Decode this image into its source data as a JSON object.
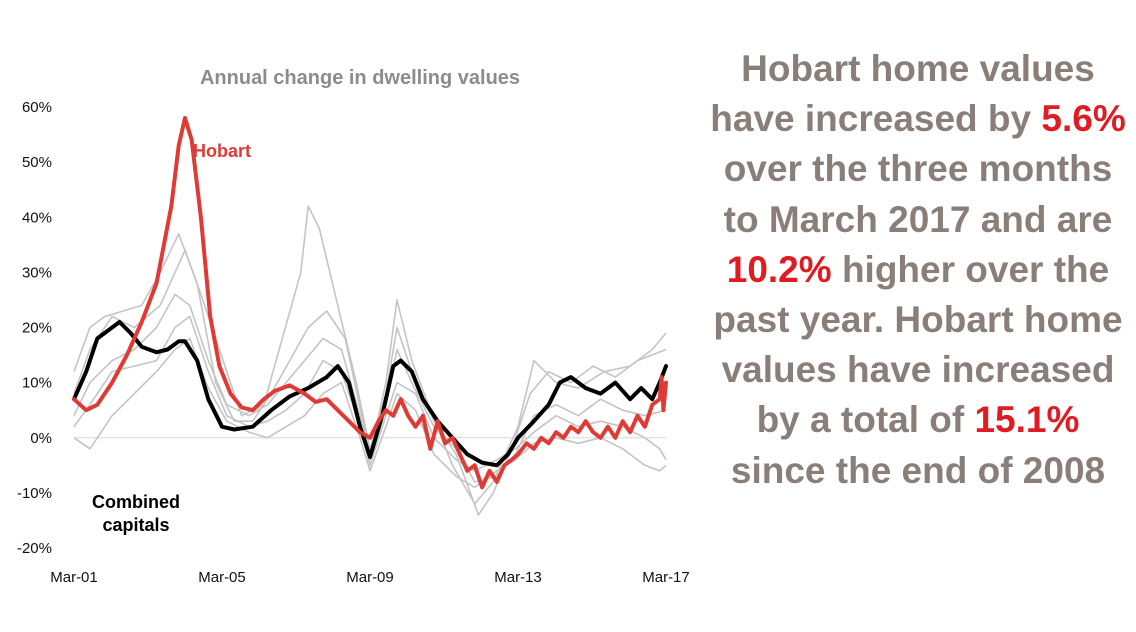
{
  "chart_data": {
    "type": "line",
    "title": "Annual change in dwelling values",
    "x_ticks": [
      "Mar-01",
      "Mar-05",
      "Mar-09",
      "Mar-13",
      "Mar-17"
    ],
    "y_ticks": [
      "60%",
      "50%",
      "40%",
      "30%",
      "20%",
      "10%",
      "0%",
      "-10%",
      "-20%"
    ],
    "ylim": [
      -20,
      60
    ],
    "xlim": [
      2001.17,
      2017.17
    ],
    "legend": "inline labels",
    "series": [
      {
        "name": "Hobart",
        "color": "#e03a34",
        "points": [
          [
            2001.17,
            7
          ],
          [
            2001.5,
            5
          ],
          [
            2001.8,
            6
          ],
          [
            2002.2,
            10
          ],
          [
            2002.6,
            15
          ],
          [
            2003.0,
            21
          ],
          [
            2003.4,
            28
          ],
          [
            2003.8,
            42
          ],
          [
            2004.0,
            53
          ],
          [
            2004.17,
            58
          ],
          [
            2004.35,
            54
          ],
          [
            2004.6,
            40
          ],
          [
            2004.85,
            22
          ],
          [
            2005.1,
            13
          ],
          [
            2005.4,
            8
          ],
          [
            2005.7,
            5.5
          ],
          [
            2006.0,
            5
          ],
          [
            2006.3,
            7
          ],
          [
            2006.6,
            8.5
          ],
          [
            2007.0,
            9.5
          ],
          [
            2007.4,
            8
          ],
          [
            2007.7,
            6.5
          ],
          [
            2008.0,
            7
          ],
          [
            2008.3,
            5
          ],
          [
            2008.6,
            3
          ],
          [
            2008.9,
            1
          ],
          [
            2009.17,
            0
          ],
          [
            2009.4,
            3
          ],
          [
            2009.6,
            5
          ],
          [
            2009.8,
            4
          ],
          [
            2010.0,
            7
          ],
          [
            2010.2,
            4
          ],
          [
            2010.4,
            2
          ],
          [
            2010.6,
            4
          ],
          [
            2010.8,
            -2
          ],
          [
            2011.0,
            3
          ],
          [
            2011.2,
            -1
          ],
          [
            2011.4,
            0
          ],
          [
            2011.6,
            -3
          ],
          [
            2011.8,
            -6
          ],
          [
            2012.0,
            -5
          ],
          [
            2012.2,
            -9
          ],
          [
            2012.4,
            -6
          ],
          [
            2012.6,
            -8
          ],
          [
            2012.8,
            -5
          ],
          [
            2013.0,
            -4
          ],
          [
            2013.17,
            -3
          ],
          [
            2013.4,
            -1
          ],
          [
            2013.6,
            -2
          ],
          [
            2013.8,
            0
          ],
          [
            2014.0,
            -1
          ],
          [
            2014.2,
            1
          ],
          [
            2014.4,
            0
          ],
          [
            2014.6,
            2
          ],
          [
            2014.8,
            1
          ],
          [
            2015.0,
            3
          ],
          [
            2015.2,
            1
          ],
          [
            2015.4,
            0
          ],
          [
            2015.6,
            2
          ],
          [
            2015.8,
            0
          ],
          [
            2016.0,
            3
          ],
          [
            2016.2,
            1
          ],
          [
            2016.4,
            4
          ],
          [
            2016.6,
            2
          ],
          [
            2016.8,
            6
          ],
          [
            2017.0,
            7
          ],
          [
            2017.05,
            11
          ],
          [
            2017.1,
            5
          ],
          [
            2017.17,
            10
          ]
        ]
      },
      {
        "name": "Combined capitals",
        "color": "#000000",
        "points": [
          [
            2001.17,
            7
          ],
          [
            2001.5,
            12
          ],
          [
            2001.8,
            18
          ],
          [
            2002.2,
            20
          ],
          [
            2002.4,
            21
          ],
          [
            2002.7,
            19
          ],
          [
            2003.0,
            16.5
          ],
          [
            2003.4,
            15.5
          ],
          [
            2003.7,
            16
          ],
          [
            2004.0,
            17.5
          ],
          [
            2004.17,
            17.5
          ],
          [
            2004.5,
            14
          ],
          [
            2004.8,
            7
          ],
          [
            2005.17,
            2
          ],
          [
            2005.5,
            1.5
          ],
          [
            2006.0,
            2
          ],
          [
            2006.5,
            5
          ],
          [
            2007.0,
            7.5
          ],
          [
            2007.5,
            9
          ],
          [
            2008.0,
            11
          ],
          [
            2008.3,
            13
          ],
          [
            2008.6,
            10
          ],
          [
            2008.9,
            2
          ],
          [
            2009.17,
            -3.5
          ],
          [
            2009.5,
            4
          ],
          [
            2009.8,
            13
          ],
          [
            2010.0,
            14
          ],
          [
            2010.3,
            12
          ],
          [
            2010.6,
            7
          ],
          [
            2011.0,
            3
          ],
          [
            2011.4,
            0
          ],
          [
            2011.8,
            -3
          ],
          [
            2012.2,
            -4.5
          ],
          [
            2012.6,
            -5
          ],
          [
            2012.9,
            -3
          ],
          [
            2013.17,
            0
          ],
          [
            2013.6,
            3
          ],
          [
            2014.0,
            6
          ],
          [
            2014.3,
            10
          ],
          [
            2014.6,
            11
          ],
          [
            2015.0,
            9
          ],
          [
            2015.4,
            8
          ],
          [
            2015.8,
            10
          ],
          [
            2016.2,
            7
          ],
          [
            2016.5,
            9
          ],
          [
            2016.8,
            7
          ],
          [
            2017.0,
            10
          ],
          [
            2017.17,
            13
          ]
        ]
      }
    ],
    "background_series": [
      [
        [
          2001.17,
          12
        ],
        [
          2001.6,
          20
        ],
        [
          2002.0,
          22
        ],
        [
          2002.5,
          23
        ],
        [
          2003.0,
          24
        ],
        [
          2003.5,
          30
        ],
        [
          2004.0,
          37
        ],
        [
          2004.5,
          28
        ],
        [
          2005.0,
          10
        ],
        [
          2005.5,
          3
        ],
        [
          2006.0,
          3
        ],
        [
          2006.5,
          8
        ],
        [
          2007.0,
          14
        ],
        [
          2007.5,
          20
        ],
        [
          2008.0,
          23
        ],
        [
          2008.5,
          18
        ],
        [
          2009.17,
          -3
        ],
        [
          2009.6,
          10
        ],
        [
          2009.9,
          25
        ],
        [
          2010.3,
          14
        ],
        [
          2010.8,
          5
        ],
        [
          2011.4,
          -5
        ],
        [
          2012.0,
          -12
        ],
        [
          2012.5,
          -8
        ],
        [
          2013.17,
          2
        ],
        [
          2013.6,
          14
        ],
        [
          2014.2,
          10
        ],
        [
          2014.8,
          9
        ],
        [
          2015.5,
          12
        ],
        [
          2016.2,
          13
        ],
        [
          2016.8,
          16
        ],
        [
          2017.17,
          19
        ]
      ],
      [
        [
          2001.17,
          8
        ],
        [
          2001.6,
          16
        ],
        [
          2002.2,
          22
        ],
        [
          2002.8,
          20
        ],
        [
          2003.5,
          24
        ],
        [
          2004.17,
          34
        ],
        [
          2004.6,
          26
        ],
        [
          2005.2,
          14
        ],
        [
          2005.7,
          4
        ],
        [
          2006.3,
          6
        ],
        [
          2006.8,
          18
        ],
        [
          2007.3,
          30
        ],
        [
          2007.5,
          42
        ],
        [
          2007.8,
          38
        ],
        [
          2008.3,
          24
        ],
        [
          2008.8,
          10
        ],
        [
          2009.17,
          -2
        ],
        [
          2009.6,
          8
        ],
        [
          2009.9,
          20
        ],
        [
          2010.3,
          12
        ],
        [
          2010.9,
          3
        ],
        [
          2011.5,
          -3
        ],
        [
          2012.1,
          -14
        ],
        [
          2012.5,
          -10
        ],
        [
          2013.0,
          -2
        ],
        [
          2013.5,
          8
        ],
        [
          2014.0,
          12
        ],
        [
          2014.6,
          10
        ],
        [
          2015.2,
          13
        ],
        [
          2015.8,
          11
        ],
        [
          2016.4,
          14
        ],
        [
          2017.17,
          16
        ]
      ],
      [
        [
          2001.17,
          4
        ],
        [
          2001.6,
          10
        ],
        [
          2002.2,
          14
        ],
        [
          2002.8,
          16
        ],
        [
          2003.4,
          20
        ],
        [
          2003.9,
          26
        ],
        [
          2004.3,
          24
        ],
        [
          2004.8,
          14
        ],
        [
          2005.3,
          6
        ],
        [
          2005.9,
          4
        ],
        [
          2006.4,
          6
        ],
        [
          2006.9,
          10
        ],
        [
          2007.4,
          14
        ],
        [
          2007.9,
          18
        ],
        [
          2008.4,
          16
        ],
        [
          2008.9,
          4
        ],
        [
          2009.17,
          -4
        ],
        [
          2009.6,
          6
        ],
        [
          2009.9,
          16
        ],
        [
          2010.3,
          10
        ],
        [
          2010.9,
          2
        ],
        [
          2011.5,
          -2
        ],
        [
          2012.0,
          -8
        ],
        [
          2012.6,
          -7
        ],
        [
          2013.1,
          -3
        ],
        [
          2013.6,
          4
        ],
        [
          2014.2,
          6
        ],
        [
          2014.8,
          4
        ],
        [
          2015.4,
          7
        ],
        [
          2016.0,
          5
        ],
        [
          2016.6,
          4
        ],
        [
          2017.17,
          5
        ]
      ],
      [
        [
          2001.17,
          2
        ],
        [
          2001.6,
          6
        ],
        [
          2002.2,
          12
        ],
        [
          2002.8,
          13
        ],
        [
          2003.4,
          14
        ],
        [
          2003.9,
          20
        ],
        [
          2004.3,
          22
        ],
        [
          2004.8,
          12
        ],
        [
          2005.3,
          4
        ],
        [
          2005.9,
          2
        ],
        [
          2006.4,
          3
        ],
        [
          2006.9,
          5
        ],
        [
          2007.4,
          8
        ],
        [
          2007.9,
          14
        ],
        [
          2008.4,
          12
        ],
        [
          2008.9,
          2
        ],
        [
          2009.17,
          -5
        ],
        [
          2009.6,
          4
        ],
        [
          2009.9,
          10
        ],
        [
          2010.4,
          8
        ],
        [
          2010.9,
          0
        ],
        [
          2011.5,
          -4
        ],
        [
          2012.0,
          -6
        ],
        [
          2012.6,
          -4
        ],
        [
          2013.1,
          -2
        ],
        [
          2013.6,
          1
        ],
        [
          2014.2,
          4
        ],
        [
          2014.8,
          2
        ],
        [
          2015.4,
          3
        ],
        [
          2016.0,
          2
        ],
        [
          2016.6,
          0
        ],
        [
          2017.0,
          -2
        ],
        [
          2017.17,
          -4
        ]
      ],
      [
        [
          2001.17,
          0
        ],
        [
          2001.6,
          -2
        ],
        [
          2002.2,
          4
        ],
        [
          2002.8,
          8
        ],
        [
          2003.4,
          12
        ],
        [
          2003.9,
          16
        ],
        [
          2004.3,
          18
        ],
        [
          2004.8,
          9
        ],
        [
          2005.3,
          3
        ],
        [
          2005.9,
          1
        ],
        [
          2006.4,
          0
        ],
        [
          2006.9,
          2
        ],
        [
          2007.4,
          4
        ],
        [
          2007.9,
          8
        ],
        [
          2008.4,
          10
        ],
        [
          2008.9,
          0
        ],
        [
          2009.17,
          -6
        ],
        [
          2009.6,
          2
        ],
        [
          2009.9,
          8
        ],
        [
          2010.4,
          5
        ],
        [
          2010.9,
          -3
        ],
        [
          2011.5,
          -7
        ],
        [
          2012.0,
          -9
        ],
        [
          2012.6,
          -6
        ],
        [
          2013.1,
          -4
        ],
        [
          2013.6,
          -1
        ],
        [
          2014.2,
          0
        ],
        [
          2014.8,
          -1
        ],
        [
          2015.4,
          0
        ],
        [
          2016.0,
          -2
        ],
        [
          2016.6,
          -5
        ],
        [
          2017.0,
          -6
        ],
        [
          2017.17,
          -5
        ]
      ]
    ],
    "annotations": [
      "Hobart",
      "Combined capitals"
    ]
  },
  "side_text": {
    "s1": "Hobart home values have increased by ",
    "h1": "5.6%",
    "s2": " over the three months to March 2017 and are ",
    "h2": "10.2%",
    "s3": " higher over the past year.  Hobart home values have increased by a total of ",
    "h3": "15.1%",
    "s4": " since the end of 2008"
  }
}
